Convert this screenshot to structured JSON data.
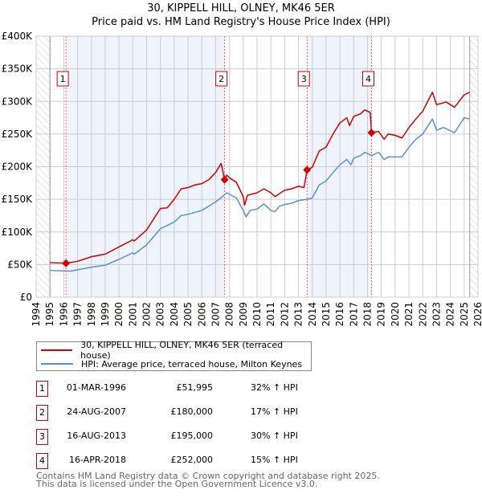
{
  "title": "30, KIPPELL HILL, OLNEY, MK46 5ER",
  "subtitle": "Price paid vs. HM Land Registry's House Price Index (HPI)",
  "colors": {
    "property": "#cc0000",
    "hpi": "#5b8fd4",
    "band": "#eef3fc"
  },
  "legend": {
    "property": "30, KIPPELL HILL, OLNEY, MK46 5ER (terraced house)",
    "hpi": "HPI: Average price, terraced house, Milton Keynes"
  },
  "sales": [
    {
      "num": "1",
      "date": "01-MAR-1996",
      "price": "£51,995",
      "hpi": "32% ↑ HPI",
      "x": 1996.16,
      "value": 52
    },
    {
      "num": "2",
      "date": "24-AUG-2007",
      "price": "£180,000",
      "hpi": "17% ↑ HPI",
      "x": 2007.65,
      "value": 180
    },
    {
      "num": "3",
      "date": "16-AUG-2013",
      "price": "£195,000",
      "hpi": "30% ↑ HPI",
      "x": 2013.62,
      "value": 195
    },
    {
      "num": "4",
      "date": "16-APR-2018",
      "price": "£252,000",
      "hpi": "15% ↑ HPI",
      "x": 2018.29,
      "value": 252
    }
  ],
  "footer": {
    "line1": "Contains HM Land Registry data © Crown copyright and database right 2025.",
    "line2": "This data is licensed under the Open Government Licence v3.0."
  },
  "chart_data": {
    "type": "line",
    "title": "30, KIPPELL HILL, OLNEY, MK46 5ER — Price paid vs. HM Land Registry's House Price Index (HPI)",
    "xlim": [
      1994,
      2026
    ],
    "ylim": [
      0,
      400
    ],
    "yunit": "£K",
    "yticks": [
      0,
      50,
      100,
      150,
      200,
      250,
      300,
      350,
      400
    ],
    "yticklabels": [
      "£0",
      "£50K",
      "£100K",
      "£150K",
      "£200K",
      "£250K",
      "£300K",
      "£350K",
      "£400K"
    ],
    "xticks": [
      1994,
      1995,
      1996,
      1997,
      1998,
      1999,
      2000,
      2001,
      2002,
      2003,
      2004,
      2005,
      2006,
      2007,
      2008,
      2009,
      2010,
      2011,
      2012,
      2013,
      2014,
      2015,
      2016,
      2017,
      2018,
      2019,
      2020,
      2021,
      2022,
      2023,
      2024,
      2025,
      2026
    ],
    "grid": true,
    "legend_position": "bottom",
    "data_range": [
      1995,
      2025.4
    ],
    "series": [
      {
        "name": "30, KIPPELL HILL, OLNEY, MK46 5ER (terraced house)",
        "x": [
          1995,
          1996.16,
          1997,
          1998,
          1999,
          2000,
          2001,
          2001.1,
          2002,
          2003,
          2003.5,
          2004,
          2004.5,
          2005,
          2005.5,
          2006,
          2006.5,
          2007,
          2007.4,
          2007.65,
          2007.8,
          2008,
          2008.5,
          2009,
          2009.1,
          2009.3,
          2010,
          2010.5,
          2011,
          2011.3,
          2012,
          2012.5,
          2013,
          2013.4,
          2013.62,
          2014,
          2014.5,
          2015,
          2015.5,
          2016,
          2016.5,
          2016.7,
          2017,
          2017.5,
          2017.8,
          2018.2,
          2018.29,
          2018.8,
          2019.2,
          2019.5,
          2020,
          2020.5,
          2021,
          2021.5,
          2022,
          2022.7,
          2023,
          2023.7,
          2024.3,
          2025,
          2025.4
        ],
        "values": [
          53,
          52,
          55,
          62,
          66,
          77,
          88,
          86,
          103,
          136,
          137,
          150,
          166,
          168,
          172,
          174,
          180,
          191,
          205,
          180,
          187,
          183,
          176,
          154,
          141,
          156,
          160,
          166,
          160,
          154,
          164,
          166,
          170,
          168,
          195,
          199,
          224,
          230,
          250,
          267,
          275,
          263,
          277,
          281,
          287,
          283,
          252,
          254,
          242,
          250,
          248,
          244,
          260,
          273,
          285,
          314,
          295,
          299,
          291,
          310,
          314
        ]
      },
      {
        "name": "HPI: Average price, terraced house, Milton Keynes",
        "x": [
          1995,
          1996.5,
          1997,
          1998,
          1999,
          2000,
          2001,
          2001.1,
          2002,
          2003,
          2004,
          2004.5,
          2005,
          2006,
          2007,
          2007.6,
          2007.8,
          2008.5,
          2009,
          2009.2,
          2009.5,
          2010,
          2010.5,
          2011,
          2011.3,
          2011.6,
          2012,
          2012.5,
          2013,
          2013.6,
          2014,
          2014.5,
          2015,
          2015.5,
          2016,
          2016.5,
          2016.8,
          2017,
          2017.5,
          2017.8,
          2018.3,
          2018.8,
          2019.2,
          2019.5,
          2020,
          2020.5,
          2021,
          2021.5,
          2022,
          2022.7,
          2023,
          2023.5,
          2024.3,
          2025,
          2025.4
        ],
        "values": [
          41,
          40,
          42,
          46,
          49,
          58,
          68,
          66,
          80,
          105,
          115,
          125,
          127,
          133,
          146,
          156,
          160,
          152,
          133,
          123,
          133,
          135,
          143,
          133,
          131,
          139,
          142,
          144,
          148,
          150,
          152,
          172,
          178,
          191,
          203,
          211,
          203,
          213,
          217,
          222,
          217,
          222,
          211,
          215,
          215,
          215,
          230,
          242,
          250,
          273,
          256,
          260,
          252,
          275,
          273
        ]
      }
    ]
  }
}
